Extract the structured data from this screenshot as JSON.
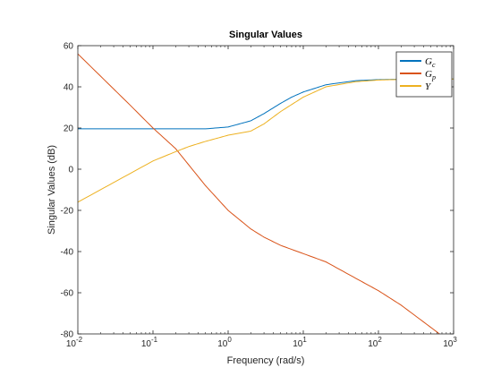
{
  "chart_data": {
    "type": "line",
    "title": "Singular Values",
    "xlabel": "Frequency (rad/s)",
    "ylabel": "Singular Values (dB)",
    "xscale": "log",
    "xlim": [
      0.01,
      1000
    ],
    "ylim": [
      -80,
      60
    ],
    "xtick_labels": [
      {
        "base": "10",
        "exp": "-2"
      },
      {
        "base": "10",
        "exp": "-1"
      },
      {
        "base": "10",
        "exp": "0"
      },
      {
        "base": "10",
        "exp": "1"
      },
      {
        "base": "10",
        "exp": "2"
      },
      {
        "base": "10",
        "exp": "3"
      }
    ],
    "yticks": [
      -80,
      -60,
      -40,
      -20,
      0,
      20,
      40,
      60
    ],
    "ytick_labels": [
      "-80",
      "-60",
      "-40",
      "-20",
      "0",
      "20",
      "40",
      "60"
    ],
    "grid": false,
    "legend_position": "top-right",
    "series": [
      {
        "name": "G",
        "subscript": "c",
        "color": "#0072BD",
        "x": [
          0.01,
          0.1,
          0.5,
          1,
          2,
          3,
          5,
          7,
          10,
          20,
          50,
          100,
          200,
          1000
        ],
        "y": [
          19.6,
          19.6,
          19.6,
          20.5,
          23.5,
          27,
          32,
          35,
          37.5,
          41,
          43,
          43.5,
          43.7,
          43.8
        ]
      },
      {
        "name": "G",
        "subscript": "p",
        "color": "#D95319",
        "x": [
          0.01,
          0.05,
          0.1,
          0.2,
          0.5,
          1,
          2,
          3,
          5,
          10,
          20,
          50,
          100,
          200,
          650
        ],
        "y": [
          56,
          31,
          20,
          10,
          -8,
          -20,
          -29,
          -33,
          -37,
          -41,
          -45,
          -53,
          -59,
          -66,
          -80
        ]
      },
      {
        "name": "Y",
        "subscript": "",
        "color": "#EDB120",
        "x": [
          0.01,
          0.1,
          0.2,
          0.3,
          0.5,
          1,
          2,
          3,
          5,
          10,
          20,
          50,
          100,
          200,
          1000
        ],
        "y": [
          -16,
          4,
          8.5,
          11,
          13.5,
          16.5,
          18.5,
          22,
          28,
          35,
          40,
          42.5,
          43.3,
          43.6,
          43.8
        ]
      }
    ]
  }
}
